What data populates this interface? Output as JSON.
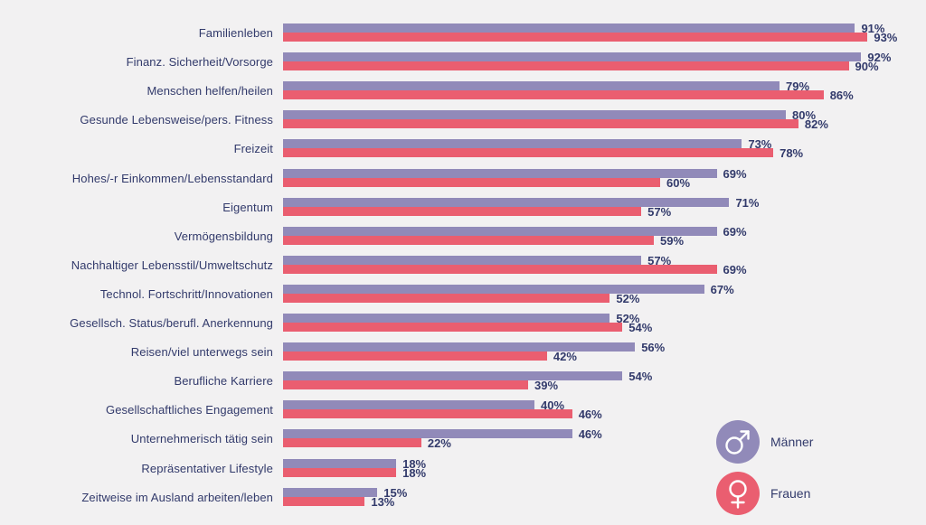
{
  "background_color": "#f2f1f2",
  "text_color": "#323a6b",
  "chart_data": {
    "type": "bar",
    "orientation": "horizontal",
    "title": "",
    "value_suffix": "%",
    "xlim": [
      0,
      100
    ],
    "grid": false,
    "legend_position": "bottom-right",
    "categories": [
      "Familienleben",
      "Finanz. Sicherheit/Vorsorge",
      "Menschen helfen/heilen",
      "Gesunde Lebensweise/pers. Fitness",
      "Freizeit",
      "Hohes/-r Einkommen/Lebensstandard",
      "Eigentum",
      "Vermögensbildung",
      "Nachhaltiger Lebensstil/Umweltschutz",
      "Technol. Fortschritt/Innovationen",
      "Gesellsch. Status/berufl. Anerkennung",
      "Reisen/viel unterwegs sein",
      "Berufliche Karriere",
      "Gesellschaftliches Engagement",
      "Unternehmerisch tätig sein",
      "Repräsentativer Lifestyle",
      "Zeitweise im Ausland arbeiten/leben"
    ],
    "series": [
      {
        "name": "Männer",
        "color": "#918ab9",
        "values": [
          91,
          92,
          79,
          80,
          73,
          69,
          71,
          69,
          57,
          67,
          52,
          56,
          54,
          40,
          46,
          18,
          15
        ]
      },
      {
        "name": "Frauen",
        "color": "#ea5e70",
        "values": [
          93,
          90,
          86,
          82,
          78,
          60,
          57,
          59,
          69,
          52,
          54,
          42,
          39,
          46,
          22,
          18,
          13
        ]
      }
    ]
  },
  "legend": {
    "items": [
      {
        "label": "Männer",
        "color": "#918ab9",
        "symbol": "male"
      },
      {
        "label": "Frauen",
        "color": "#ea5e70",
        "symbol": "female"
      }
    ]
  }
}
